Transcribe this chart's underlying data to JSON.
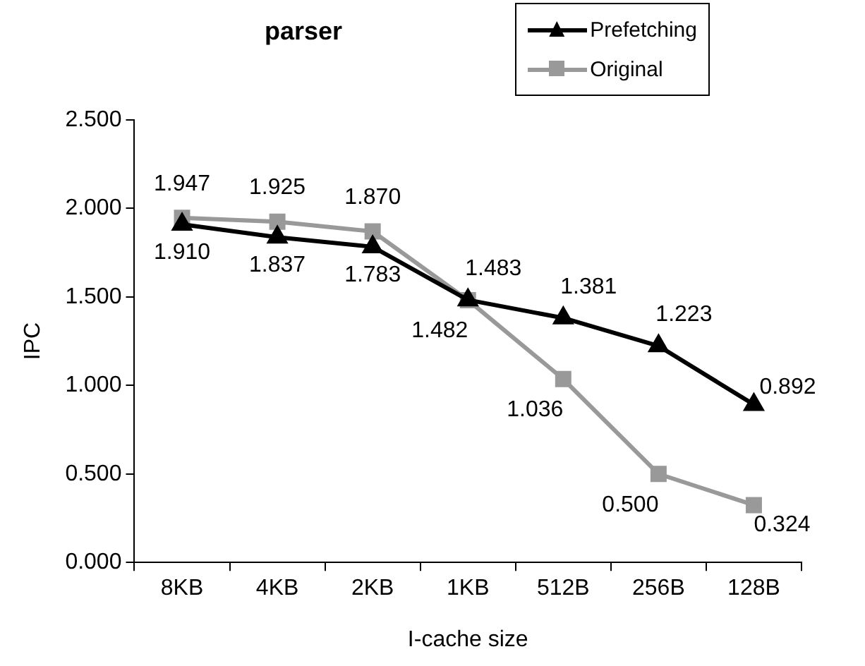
{
  "chart_data": {
    "type": "line",
    "title": "parser",
    "xlabel": "I-cache size",
    "ylabel": "IPC",
    "categories": [
      "8KB",
      "4KB",
      "2KB",
      "1KB",
      "512B",
      "256B",
      "128B"
    ],
    "series": [
      {
        "name": "Prefetching",
        "color": "#000000",
        "marker": "triangle",
        "values": [
          1.91,
          1.837,
          1.783,
          1.483,
          1.381,
          1.223,
          0.892
        ],
        "value_labels": [
          "1.910",
          "1.837",
          "1.783",
          "1.483",
          "1.381",
          "1.223",
          "0.892"
        ]
      },
      {
        "name": "Original",
        "color": "#999999",
        "marker": "square",
        "values": [
          1.947,
          1.925,
          1.87,
          1.482,
          1.036,
          0.5,
          0.324
        ],
        "value_labels": [
          "1.947",
          "1.925",
          "1.870",
          "1.482",
          "1.036",
          "0.500",
          "0.324"
        ]
      }
    ],
    "ylim": [
      0,
      2.5
    ],
    "yticks": [
      {
        "value": 0,
        "label": "0.000"
      },
      {
        "value": 0.5,
        "label": "0.500"
      },
      {
        "value": 1,
        "label": "1.000"
      },
      {
        "value": 1.5,
        "label": "1.500"
      },
      {
        "value": 2,
        "label": "2.000"
      },
      {
        "value": 2.5,
        "label": "2.500"
      }
    ],
    "grid": false,
    "legend": "top right",
    "line_style": "solid"
  }
}
